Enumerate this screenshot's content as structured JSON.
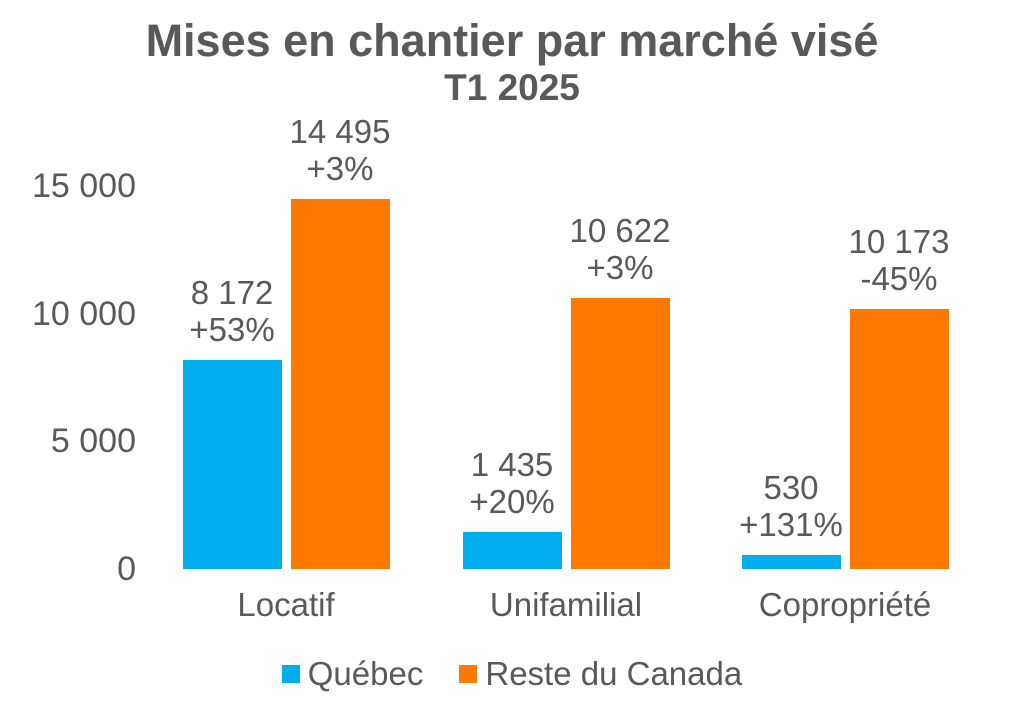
{
  "chart_data": {
    "type": "bar",
    "title": "Mises en chantier par marché visé",
    "subtitle": "T1 2025",
    "categories": [
      "Locatif",
      "Unifamilial",
      "Copropriété"
    ],
    "series": [
      {
        "name": "Québec",
        "color": "#00AEEF",
        "values": [
          8172,
          1435,
          530
        ],
        "value_labels": [
          "8 172",
          "1 435",
          "530"
        ],
        "pct_labels": [
          "+53%",
          "+20%",
          "+131%"
        ]
      },
      {
        "name": "Reste du Canada",
        "color": "#FF7900",
        "values": [
          14495,
          10622,
          10173
        ],
        "value_labels": [
          "14 495",
          "10 622",
          "10 173"
        ],
        "pct_labels": [
          "+3%",
          "+3%",
          "-45%"
        ]
      }
    ],
    "ylim": [
      0,
      15000
    ],
    "yticks": [
      0,
      5000,
      10000,
      15000
    ],
    "ytick_labels": [
      "0",
      "5 000",
      "10 000",
      "15 000"
    ],
    "grid": false,
    "axis_lines": false,
    "legend_position": "bottom",
    "text_color": "#595959",
    "background_color": "#ffffff"
  }
}
